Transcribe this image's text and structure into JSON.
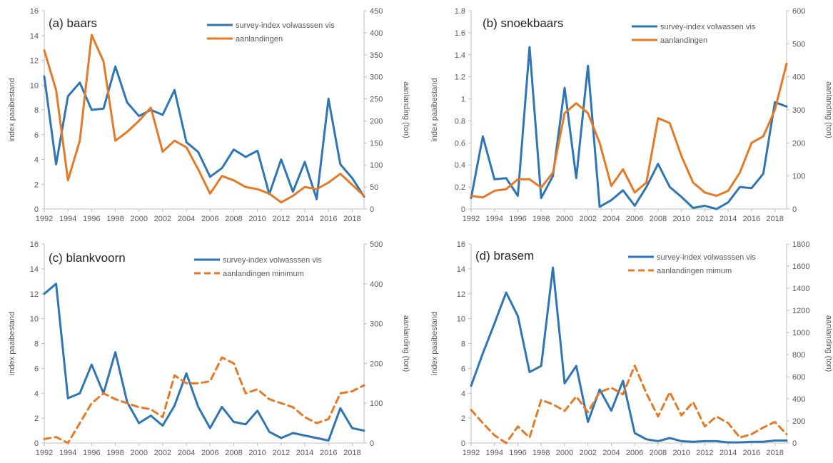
{
  "colors": {
    "blue": "#2E75B6",
    "orange": "#E47A26",
    "axis": "#BFBFBF",
    "text": "#595959"
  },
  "chart_data": [
    {
      "type": "line",
      "title": "(a) baars",
      "ylabel": "index paaibestand",
      "y2label": "aanlanding (ton)",
      "ylim": [
        0,
        16
      ],
      "yticks": [
        0,
        2,
        4,
        6,
        8,
        10,
        12,
        14,
        16
      ],
      "y2lim": [
        0,
        450
      ],
      "y2ticks": [
        0,
        50,
        100,
        150,
        200,
        250,
        300,
        350,
        400,
        450
      ],
      "xlim": [
        1992,
        2019
      ],
      "xticks": [
        1992,
        1994,
        1996,
        1998,
        2000,
        2002,
        2004,
        2006,
        2008,
        2010,
        2012,
        2014,
        2016,
        2018
      ],
      "legend": "top-right",
      "series": [
        {
          "name": "survey-index volwasssen vis",
          "axis": "left",
          "dashed": false,
          "color": "blue",
          "x": [
            1992,
            1993,
            1994,
            1995,
            1996,
            1997,
            1998,
            1999,
            2000,
            2001,
            2002,
            2003,
            2004,
            2005,
            2006,
            2007,
            2008,
            2009,
            2010,
            2011,
            2012,
            2013,
            2014,
            2015,
            2016,
            2017,
            2018,
            2019
          ],
          "y": [
            10.7,
            3.6,
            9.1,
            10.2,
            8.0,
            8.1,
            11.5,
            8.6,
            7.5,
            8.0,
            7.6,
            9.6,
            5.4,
            4.6,
            2.6,
            3.3,
            4.8,
            4.2,
            4.7,
            1.2,
            4.0,
            1.4,
            3.8,
            0.8,
            8.9,
            3.6,
            2.5,
            1.0
          ]
        },
        {
          "name": "aanlandingen",
          "axis": "right",
          "dashed": false,
          "color": "orange",
          "x": [
            1992,
            1993,
            1994,
            1995,
            1996,
            1997,
            1998,
            1999,
            2000,
            2001,
            2002,
            2003,
            2004,
            2005,
            2006,
            2007,
            2008,
            2009,
            2010,
            2011,
            2012,
            2013,
            2014,
            2015,
            2016,
            2017,
            2018,
            2019
          ],
          "y": [
            360,
            270,
            65,
            155,
            395,
            335,
            155,
            175,
            200,
            230,
            130,
            155,
            140,
            90,
            35,
            75,
            65,
            50,
            45,
            35,
            15,
            30,
            50,
            45,
            60,
            80,
            55,
            30
          ]
        }
      ]
    },
    {
      "type": "line",
      "title": "(b) snoekbaars",
      "ylabel": "index paaibestand",
      "y2label": "aanlanding (ton)",
      "ylim": [
        0,
        1.8
      ],
      "yticks": [
        0,
        0.2,
        0.4,
        0.6,
        0.8,
        1,
        1.2,
        1.4,
        1.6,
        1.8
      ],
      "y2lim": [
        0,
        600
      ],
      "y2ticks": [
        0,
        100,
        200,
        300,
        400,
        500,
        600
      ],
      "xlim": [
        1992,
        2019
      ],
      "xticks": [
        1992,
        1994,
        1996,
        1998,
        2000,
        2002,
        2004,
        2006,
        2008,
        2010,
        2012,
        2014,
        2016,
        2018
      ],
      "legend": "top-right",
      "series": [
        {
          "name": "survey-index volwassen vis",
          "axis": "left",
          "dashed": false,
          "color": "blue",
          "x": [
            1992,
            1993,
            1994,
            1995,
            1996,
            1997,
            1998,
            1999,
            2000,
            2001,
            2002,
            2003,
            2004,
            2005,
            2006,
            2007,
            2008,
            2009,
            2010,
            2011,
            2012,
            2013,
            2014,
            2015,
            2016,
            2017,
            2018,
            2019
          ],
          "y": [
            0.1,
            0.66,
            0.27,
            0.28,
            0.12,
            1.47,
            0.1,
            0.3,
            1.1,
            0.28,
            1.3,
            0.02,
            0.08,
            0.17,
            0.03,
            0.2,
            0.41,
            0.2,
            0.11,
            0.01,
            0.03,
            0.0,
            0.06,
            0.2,
            0.19,
            0.32,
            0.97,
            0.93
          ]
        },
        {
          "name": "aanlandingen",
          "axis": "right",
          "dashed": false,
          "color": "orange",
          "x": [
            1992,
            1993,
            1994,
            1995,
            1996,
            1997,
            1998,
            1999,
            2000,
            2001,
            2002,
            2003,
            2004,
            2005,
            2006,
            2007,
            2008,
            2009,
            2010,
            2011,
            2012,
            2013,
            2014,
            2015,
            2016,
            2017,
            2018,
            2019
          ],
          "y": [
            40,
            35,
            55,
            60,
            90,
            90,
            65,
            110,
            290,
            320,
            290,
            200,
            70,
            120,
            50,
            80,
            275,
            260,
            160,
            80,
            50,
            40,
            55,
            110,
            200,
            220,
            300,
            440
          ]
        }
      ]
    },
    {
      "type": "line",
      "title": "(c) blankvoorn",
      "ylabel": "index paaibestand",
      "y2label": "aanlanding (ton)",
      "ylim": [
        0,
        16
      ],
      "yticks": [
        0,
        2,
        4,
        6,
        8,
        10,
        12,
        14,
        16
      ],
      "y2lim": [
        0,
        500
      ],
      "y2ticks": [
        0,
        100,
        200,
        300,
        400,
        500
      ],
      "xlim": [
        1992,
        2019
      ],
      "xticks": [
        1992,
        1994,
        1996,
        1998,
        2000,
        2002,
        2004,
        2006,
        2008,
        2010,
        2012,
        2014,
        2016,
        2018
      ],
      "legend": "top-right",
      "series": [
        {
          "name": "survey-index volwasssen vis",
          "axis": "left",
          "dashed": false,
          "color": "blue",
          "x": [
            1992,
            1993,
            1994,
            1995,
            1996,
            1997,
            1998,
            1999,
            2000,
            2001,
            2002,
            2003,
            2004,
            2005,
            2006,
            2007,
            2008,
            2009,
            2010,
            2011,
            2012,
            2013,
            2014,
            2015,
            2016,
            2017,
            2018,
            2019
          ],
          "y": [
            12.0,
            12.8,
            3.6,
            4.0,
            6.3,
            4.0,
            7.3,
            3.3,
            1.6,
            2.2,
            1.4,
            3.0,
            5.6,
            2.9,
            1.2,
            2.9,
            1.7,
            1.5,
            2.6,
            0.9,
            0.4,
            0.8,
            0.6,
            0.4,
            0.2,
            2.8,
            1.2,
            1.0
          ]
        },
        {
          "name": "aanlandingen minimum",
          "axis": "right",
          "dashed": true,
          "color": "orange",
          "x": [
            1992,
            1993,
            1994,
            1995,
            1996,
            1997,
            1998,
            1999,
            2000,
            2001,
            2002,
            2003,
            2004,
            2005,
            2006,
            2007,
            2008,
            2009,
            2010,
            2011,
            2012,
            2013,
            2014,
            2015,
            2016,
            2017,
            2018,
            2019
          ],
          "y": [
            10,
            15,
            0,
            50,
            100,
            125,
            110,
            100,
            90,
            85,
            65,
            170,
            150,
            150,
            155,
            215,
            200,
            125,
            135,
            110,
            100,
            90,
            65,
            50,
            60,
            125,
            130,
            145
          ]
        }
      ]
    },
    {
      "type": "line",
      "title": "(d) brasem",
      "ylabel": "index paaibestand",
      "y2label": "aanlanding (ton)",
      "ylim": [
        0,
        16
      ],
      "yticks": [
        0,
        2,
        4,
        6,
        8,
        10,
        12,
        14,
        16
      ],
      "y2lim": [
        0,
        1800
      ],
      "y2ticks": [
        0,
        200,
        400,
        600,
        800,
        1000,
        1200,
        1400,
        1600,
        1800
      ],
      "xlim": [
        1992,
        2019
      ],
      "xticks": [
        1992,
        1994,
        1996,
        1998,
        2000,
        2002,
        2004,
        2006,
        2008,
        2010,
        2012,
        2014,
        2016,
        2018
      ],
      "legend": "top-right",
      "series": [
        {
          "name": "survey-index volwasssen vis",
          "axis": "left",
          "dashed": false,
          "color": "blue",
          "x": [
            1992,
            1993,
            1994,
            1995,
            1996,
            1997,
            1998,
            1999,
            2000,
            2001,
            2002,
            2003,
            2004,
            2005,
            2006,
            2007,
            2008,
            2009,
            2010,
            2011,
            2012,
            2013,
            2014,
            2015,
            2016,
            2017,
            2018,
            2019
          ],
          "y": [
            4.6,
            7.2,
            9.6,
            12.1,
            10.2,
            5.7,
            6.2,
            14.1,
            4.8,
            6.2,
            1.7,
            4.3,
            2.6,
            5.0,
            0.8,
            0.3,
            0.15,
            0.4,
            0.15,
            0.1,
            0.15,
            0.15,
            0.05,
            0.05,
            0.1,
            0.1,
            0.2,
            0.2
          ]
        },
        {
          "name": "aanlandingen mimum",
          "axis": "right",
          "dashed": true,
          "color": "orange",
          "x": [
            1992,
            1993,
            1994,
            1995,
            1996,
            1997,
            1998,
            1999,
            2000,
            2001,
            2002,
            2003,
            2004,
            2005,
            2006,
            2007,
            2008,
            2009,
            2010,
            2011,
            2012,
            2013,
            2014,
            2015,
            2016,
            2017,
            2018,
            2019
          ],
          "y": [
            300,
            180,
            70,
            0,
            150,
            50,
            390,
            350,
            290,
            420,
            280,
            460,
            500,
            440,
            700,
            450,
            240,
            460,
            250,
            370,
            150,
            240,
            180,
            50,
            80,
            140,
            190,
            80
          ]
        }
      ]
    }
  ]
}
